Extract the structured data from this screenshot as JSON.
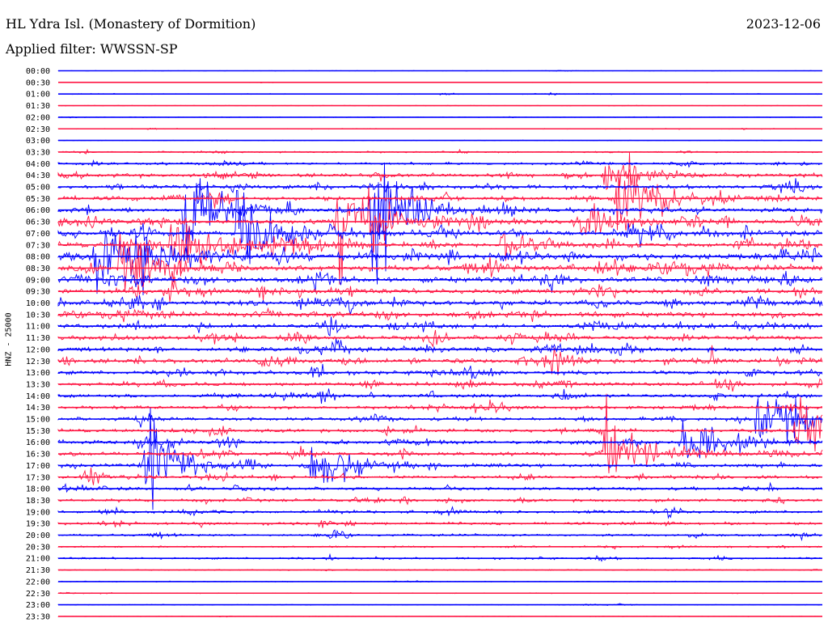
{
  "header": {
    "station": "HL Ydra Isl. (Monastery of Dormition)",
    "date": "2023-12-06",
    "filter": "Applied filter: WWSSN-SP"
  },
  "chart_data": {
    "type": "line",
    "title": "HL Ydra Isl. (Monastery of Dormition)",
    "subtitle": "Applied filter: WWSSN-SP",
    "ylabel": "HNZ - 25000",
    "xlabel": "",
    "tick_labels": [
      "00:00",
      "00:30",
      "01:00",
      "01:30",
      "02:00",
      "02:30",
      "03:00",
      "03:30",
      "04:00",
      "04:30",
      "05:00",
      "05:30",
      "06:00",
      "06:30",
      "07:00",
      "07:30",
      "08:00",
      "08:30",
      "09:00",
      "09:30",
      "10:00",
      "10:30",
      "11:00",
      "11:30",
      "12:00",
      "12:30",
      "13:00",
      "13:30",
      "14:00",
      "14:30",
      "15:00",
      "15:30",
      "16:00",
      "16:30",
      "17:00",
      "17:30",
      "18:00",
      "18:30",
      "19:00",
      "19:30",
      "20:00",
      "20:30",
      "21:00",
      "21:30",
      "22:00",
      "22:30",
      "23:00",
      "23:30"
    ],
    "colors": {
      "even_rows": "#0000ff",
      "odd_rows": "#ff1744",
      "axis": "#000000"
    },
    "noise_level": [
      0.3,
      0.3,
      0.6,
      0.4,
      0.5,
      0.6,
      0.4,
      1.0,
      1.8,
      2.5,
      2.8,
      3.0,
      3.2,
      3.5,
      3.6,
      3.8,
      4.0,
      4.0,
      3.8,
      3.5,
      3.5,
      3.3,
      3.2,
      3.0,
      3.0,
      3.0,
      2.8,
      2.6,
      2.5,
      2.4,
      2.4,
      2.4,
      2.5,
      2.5,
      2.4,
      2.2,
      2.2,
      2.0,
      2.0,
      1.8,
      1.6,
      1.2,
      1.4,
      0.8,
      0.6,
      0.6,
      0.5,
      0.4
    ],
    "events": [
      {
        "row": 16,
        "minute": 1.5,
        "amplitude": 95,
        "duration": 7
      },
      {
        "row": 17,
        "minute": 2.5,
        "amplitude": 150,
        "duration": 3
      },
      {
        "row": 15,
        "minute": 4.5,
        "amplitude": 90,
        "duration": 5
      },
      {
        "row": 12,
        "minute": 5.0,
        "amplitude": 150,
        "duration": 3
      },
      {
        "row": 14,
        "minute": 7.0,
        "amplitude": 130,
        "duration": 4
      },
      {
        "row": 13,
        "minute": 11.0,
        "amplitude": 140,
        "duration": 4
      },
      {
        "row": 12,
        "minute": 12.3,
        "amplitude": 180,
        "duration": 4
      },
      {
        "row": 13,
        "minute": 20.5,
        "amplitude": 60,
        "duration": 3
      },
      {
        "row": 11,
        "minute": 22.0,
        "amplitude": 140,
        "duration": 3
      },
      {
        "row": 15,
        "minute": 17.5,
        "amplitude": 40,
        "duration": 3
      },
      {
        "row": 9,
        "minute": 21.5,
        "amplitude": 70,
        "duration": 3
      },
      {
        "row": 25,
        "minute": 8.0,
        "amplitude": 25,
        "duration": 2
      },
      {
        "row": 25,
        "minute": 19.5,
        "amplitude": 30,
        "duration": 2
      },
      {
        "row": 34,
        "minute": 3.5,
        "amplitude": 140,
        "duration": 3
      },
      {
        "row": 35,
        "minute": 1.0,
        "amplitude": 30,
        "duration": 2
      },
      {
        "row": 34,
        "minute": 10.0,
        "amplitude": 75,
        "duration": 4
      },
      {
        "row": 33,
        "minute": 21.5,
        "amplitude": 90,
        "duration": 5
      },
      {
        "row": 32,
        "minute": 24.5,
        "amplitude": 75,
        "duration": 4
      },
      {
        "row": 31,
        "minute": 29.0,
        "amplitude": 110,
        "duration": 4
      },
      {
        "row": 30,
        "minute": 27.5,
        "amplitude": 95,
        "duration": 4
      },
      {
        "row": 32,
        "minute": 3.0,
        "amplitude": 20,
        "duration": 2
      },
      {
        "row": 22,
        "minute": 26.5,
        "amplitude": 25,
        "duration": 2
      },
      {
        "row": 24,
        "minute": 20.5,
        "amplitude": 22,
        "duration": 2
      },
      {
        "row": 20,
        "minute": 9.5,
        "amplitude": 22,
        "duration": 2
      }
    ]
  }
}
